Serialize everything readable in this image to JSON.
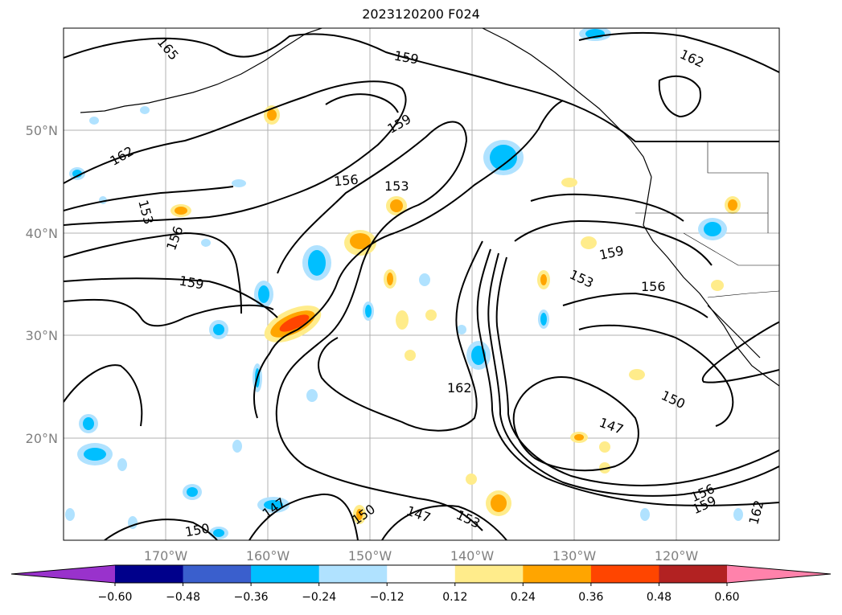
{
  "title": "2023120200 F024",
  "map": {
    "lat_ticks": [
      "50°N",
      "40°N",
      "30°N",
      "20°N"
    ],
    "lon_ticks": [
      "170°W",
      "160°W",
      "150°W",
      "140°W",
      "130°W",
      "120°W"
    ],
    "grid": true,
    "axis_label_color": "#808080",
    "contour_labels": [
      "165",
      "159",
      "159",
      "162",
      "162",
      "153",
      "156",
      "156",
      "153",
      "159",
      "159",
      "153",
      "156",
      "162",
      "150",
      "147",
      "147",
      "150",
      "153",
      "150",
      "156",
      "159",
      "162"
    ]
  },
  "colorbar": {
    "ticks": [
      "−0.60",
      "−0.48",
      "−0.36",
      "−0.24",
      "−0.12",
      "0.12",
      "0.24",
      "0.36",
      "0.48",
      "0.60"
    ],
    "colors": [
      "#9932cc",
      "#00008b",
      "#3a5fcd",
      "#00bfff",
      "#b0e2ff",
      "#ffffff",
      "#ffec8b",
      "#ffa500",
      "#ff4500",
      "#b22222",
      "#ff82ab"
    ]
  }
}
